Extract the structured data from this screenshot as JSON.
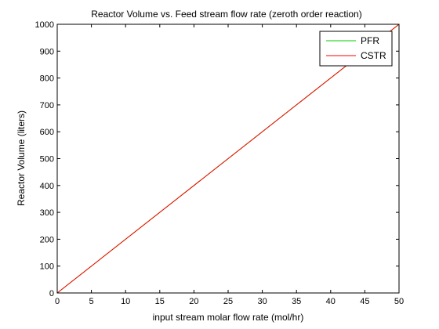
{
  "chart_data": {
    "type": "line",
    "title": "Reactor Volume vs. Feed stream flow rate (zeroth order reaction)",
    "xlabel": "input stream molar flow rate (mol/hr)",
    "ylabel": "Reactor Volume (liters)",
    "xlim": [
      0,
      50
    ],
    "ylim": [
      0,
      1000
    ],
    "xticks": [
      0,
      5,
      10,
      15,
      20,
      25,
      30,
      35,
      40,
      45,
      50
    ],
    "yticks": [
      0,
      100,
      200,
      300,
      400,
      500,
      600,
      700,
      800,
      900,
      1000
    ],
    "grid": false,
    "legend_position": "top-right",
    "series": [
      {
        "name": "PFR",
        "color": "#00cc00",
        "x": [
          0,
          50
        ],
        "y": [
          0,
          1000
        ]
      },
      {
        "name": "CSTR",
        "color": "#ff0000",
        "x": [
          0,
          50
        ],
        "y": [
          0,
          1000
        ]
      }
    ]
  }
}
